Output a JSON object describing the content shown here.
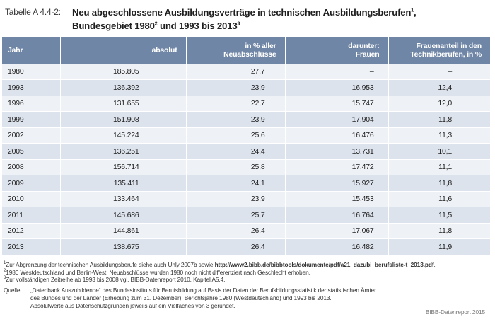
{
  "caption": {
    "label": "Tabelle A 4.4-2:",
    "title_line1": "Neu abgeschlossene Ausbildungsverträge in technischen Ausbildungsberufen",
    "title_line1_sup": "1",
    "title_line1_end": ",",
    "title_line2_a": "Bundesgebiet 1980",
    "title_line2_sup_a": "2",
    "title_line2_b": " und 1993 bis 2013",
    "title_line2_sup_b": "3"
  },
  "table": {
    "headers": {
      "h0": "Jahr",
      "h1": "absolut",
      "h2": "in % aller Neuabschlüsse",
      "h3_line1": "darunter:",
      "h3_line2": "Frauen",
      "h4_line1": "Frauenanteil in den",
      "h4_line2": "Technikberufen, in %"
    },
    "rows": [
      {
        "year": "1980",
        "absolut": "185.805",
        "pct": "27,7",
        "frauen": "–",
        "anteil": "–"
      },
      {
        "year": "1993",
        "absolut": "136.392",
        "pct": "23,9",
        "frauen": "16.953",
        "anteil": "12,4"
      },
      {
        "year": "1996",
        "absolut": "131.655",
        "pct": "22,7",
        "frauen": "15.747",
        "anteil": "12,0"
      },
      {
        "year": "1999",
        "absolut": "151.908",
        "pct": "23,9",
        "frauen": "17.904",
        "anteil": "11,8"
      },
      {
        "year": "2002",
        "absolut": "145.224",
        "pct": "25,6",
        "frauen": "16.476",
        "anteil": "11,3"
      },
      {
        "year": "2005",
        "absolut": "136.251",
        "pct": "24,4",
        "frauen": "13.731",
        "anteil": "10,1"
      },
      {
        "year": "2008",
        "absolut": "156.714",
        "pct": "25,8",
        "frauen": "17.472",
        "anteil": "11,1"
      },
      {
        "year": "2009",
        "absolut": "135.411",
        "pct": "24,1",
        "frauen": "15.927",
        "anteil": "11,8"
      },
      {
        "year": "2010",
        "absolut": "133.464",
        "pct": "23,9",
        "frauen": "15.453",
        "anteil": "11,6"
      },
      {
        "year": "2011",
        "absolut": "145.686",
        "pct": "25,7",
        "frauen": "16.764",
        "anteil": "11,5"
      },
      {
        "year": "2012",
        "absolut": "144.861",
        "pct": "26,4",
        "frauen": "17.067",
        "anteil": "11,8"
      },
      {
        "year": "2013",
        "absolut": "138.675",
        "pct": "26,4",
        "frauen": "16.482",
        "anteil": "11,9"
      }
    ]
  },
  "notes": {
    "fn1_num": "1",
    "fn1_text": "Zur Abgrenzung der technischen Ausbildungsberufe siehe auch Uhly 2007b sowie ",
    "fn1_link": "http://www2.bibb.de/bibbtools/dokumente/pdf/a21_dazubi_berufsliste-t_2013.pdf",
    "fn1_end": ".",
    "fn2_num": "2",
    "fn2_text": "1980 Westdeutschland und Berlin-West; Neuabschlüsse wurden 1980 noch nicht differenziert nach Geschlecht erhoben.",
    "fn3_num": "3",
    "fn3_text": "Zur vollständigen Zeitreihe ab 1993 bis 2008 vgl. BIBB-Datenreport 2010, Kapitel A5.4.",
    "source_label": "Quelle:",
    "source_line1": "„Datenbank Auszubildende“ des Bundesinstituts für Berufsbildung auf Basis der Daten der Berufsbildungsstatistik der statistischen Ämter",
    "source_line2": "des Bundes und der Länder (Erhebung zum 31. Dezember), Berichtsjahre 1980 (Westdeutschland) und 1993 bis 2013.",
    "source_line3": "Absolutwerte aus Datenschutzgründen jeweils auf ein Vielfaches von 3 gerundet.",
    "credit": "BIBB-Datenreport 2015"
  }
}
